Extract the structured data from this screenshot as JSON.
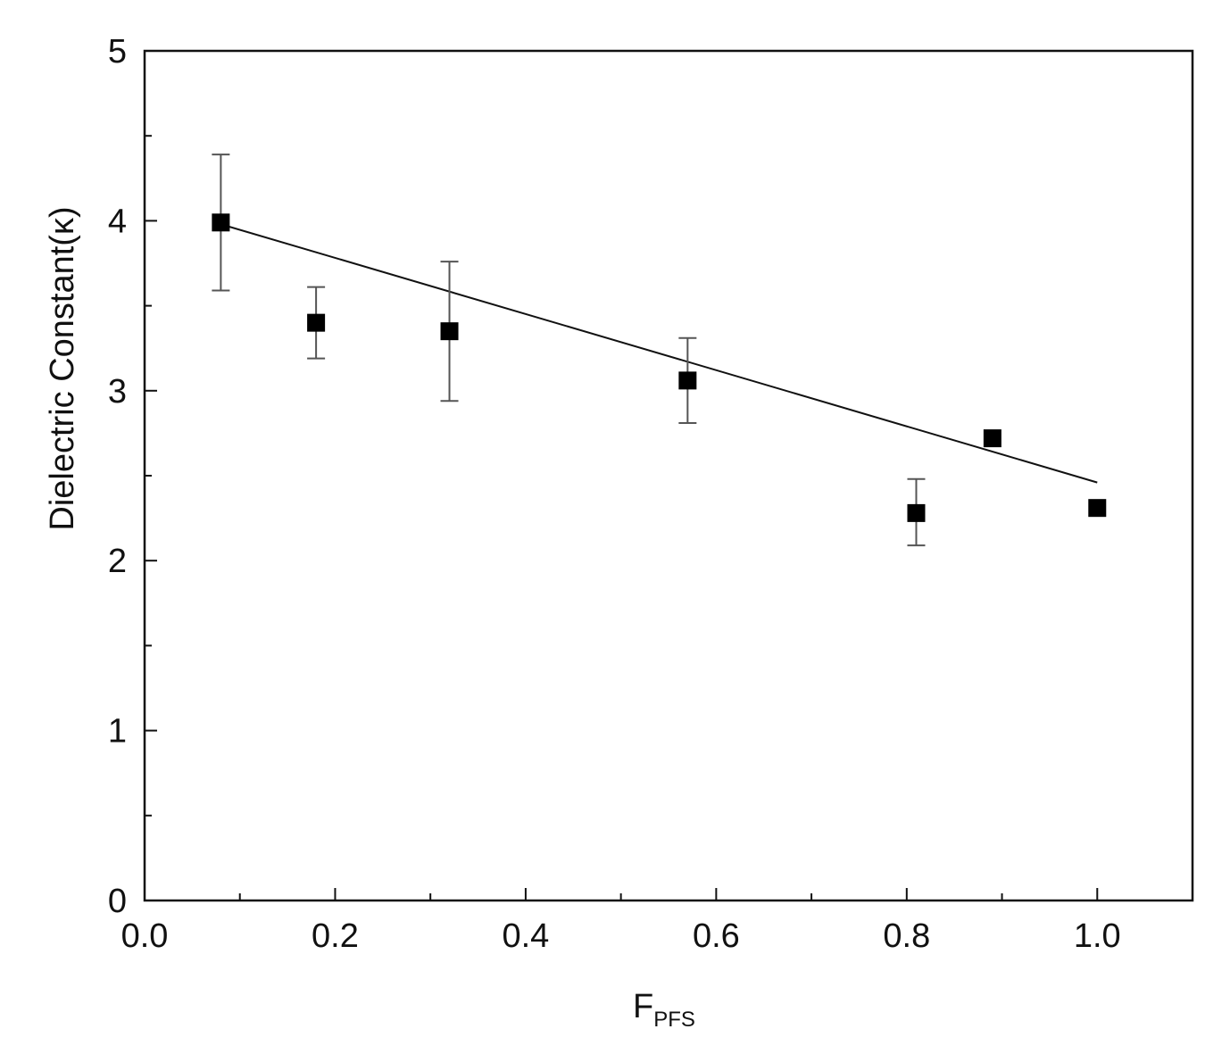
{
  "chart_data": {
    "type": "scatter",
    "xlabel": "F",
    "xlabel_subscript": "PFS",
    "ylabel": "Dielectric Constant(κ)",
    "xlim": [
      0.0,
      1.1
    ],
    "ylim": [
      0,
      5
    ],
    "x_ticks": [
      0.0,
      0.2,
      0.4,
      0.6,
      0.8,
      1.0
    ],
    "x_tick_labels": [
      "0.0",
      "0.2",
      "0.4",
      "0.6",
      "0.8",
      "1.0"
    ],
    "x_minor_ticks": [
      0.1,
      0.3,
      0.5,
      0.7,
      0.9
    ],
    "y_ticks": [
      0,
      1,
      2,
      3,
      4,
      5
    ],
    "y_tick_labels": [
      "0",
      "1",
      "2",
      "3",
      "4",
      "5"
    ],
    "y_minor_ticks": [
      0.5,
      1.5,
      2.5,
      3.5,
      4.5
    ],
    "grid": false,
    "legend": "none",
    "marker": "filled-square",
    "marker_color": "#000000",
    "errorbar_color": "#555555",
    "line_color": "#111111",
    "series": [
      {
        "x": [
          0.08,
          0.18,
          0.32,
          0.57,
          0.81,
          0.89,
          1.0
        ],
        "y": [
          3.99,
          3.4,
          3.35,
          3.06,
          2.28,
          2.72,
          2.31
        ],
        "error_low": [
          0.4,
          0.21,
          0.41,
          0.25,
          0.19,
          0.0,
          0.0
        ],
        "error_high": [
          0.4,
          0.21,
          0.41,
          0.25,
          0.2,
          0.0,
          0.0
        ]
      }
    ],
    "fit_line": {
      "x": [
        0.08,
        1.0
      ],
      "y": [
        3.98,
        2.46
      ]
    }
  }
}
